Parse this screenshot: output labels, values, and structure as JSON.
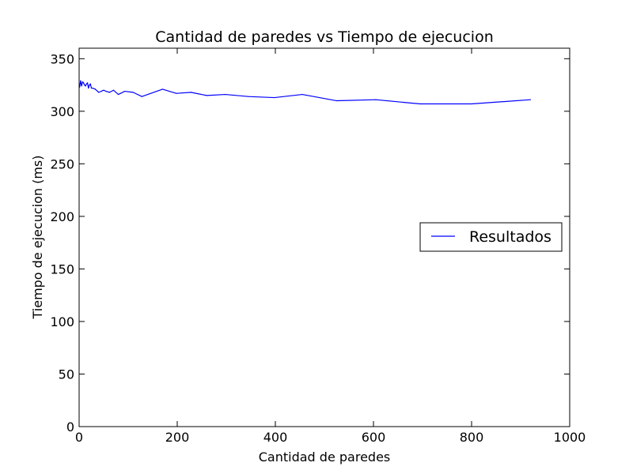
{
  "chart_data": {
    "type": "line",
    "title": "Cantidad de paredes vs Tiempo de ejecucion",
    "xlabel": "Cantidad de paredes",
    "ylabel": "Tiempo de ejecucion (ms)",
    "xlim": [
      0,
      1000
    ],
    "ylim": [
      0,
      360
    ],
    "xticks": [
      0,
      200,
      400,
      600,
      800,
      1000
    ],
    "yticks": [
      0,
      50,
      100,
      150,
      200,
      250,
      300,
      350
    ],
    "xtick_labels": [
      "0",
      "200",
      "400",
      "600",
      "800",
      "1000"
    ],
    "ytick_labels": [
      "0",
      "50",
      "100",
      "150",
      "200",
      "250",
      "300",
      "350"
    ],
    "grid": false,
    "legend_position": "center-right",
    "series": [
      {
        "name": "Resultados",
        "color": "#0000ff",
        "x": [
          1,
          3,
          5,
          7,
          9,
          11,
          13,
          15,
          17,
          19,
          21,
          23,
          25,
          28,
          33,
          40,
          50,
          55,
          62,
          70,
          80,
          93,
          110,
          128,
          170,
          198,
          228,
          260,
          298,
          345,
          398,
          455,
          525,
          605,
          695,
          800,
          920
        ],
        "y": [
          323,
          329,
          324,
          328,
          327,
          325,
          324,
          326,
          327,
          322,
          325,
          326,
          322,
          322,
          321,
          318,
          320,
          319,
          318,
          320,
          316,
          319,
          318,
          314,
          321,
          317,
          318,
          315,
          316,
          314,
          313,
          316,
          310,
          311,
          307,
          307,
          311
        ]
      }
    ]
  }
}
